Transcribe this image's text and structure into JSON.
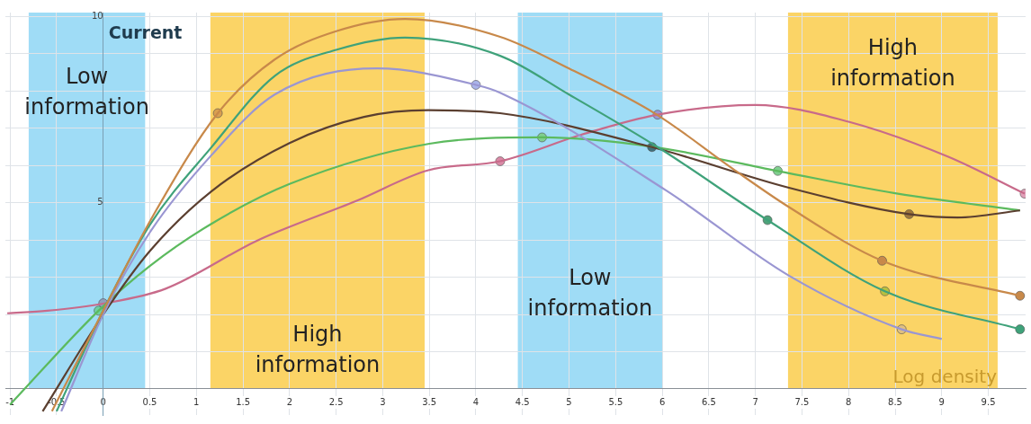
{
  "chart_data": {
    "type": "line",
    "xlim": [
      -1.05,
      9.9
    ],
    "ylim": [
      -0.7,
      10.1
    ],
    "xticks": [
      -1,
      -0.5,
      0,
      0.5,
      1,
      1.5,
      2,
      2.5,
      3,
      3.5,
      4,
      4.5,
      5,
      5.5,
      6,
      6.5,
      7,
      7.5,
      8,
      8.5,
      9,
      9.5
    ],
    "yticks": [
      {
        "value": 1,
        "label": null
      },
      {
        "value": 2,
        "label": null
      },
      {
        "value": 3,
        "label": null
      },
      {
        "value": 4,
        "label": null
      },
      5,
      {
        "value": 6,
        "label": null
      },
      {
        "value": 7,
        "label": null
      },
      {
        "value": 8,
        "label": null
      },
      {
        "value": 9,
        "label": null
      },
      10
    ],
    "grid": true,
    "legend": false,
    "marker": "none",
    "line_style": "solid",
    "bands": [
      {
        "axis": "x",
        "from": -0.8,
        "to": 0.45,
        "label": "Low information",
        "color": "#9fdcf6"
      },
      {
        "axis": "x",
        "from": 1.15,
        "to": 3.45,
        "label": "High information",
        "color": "#fbd466"
      },
      {
        "axis": "x",
        "from": 4.45,
        "to": 6.0,
        "label": "Low information",
        "color": "#9fdcf6"
      },
      {
        "axis": "x",
        "from": 7.35,
        "to": 9.6,
        "label": "High information",
        "color": "#fbd466"
      }
    ],
    "annotations": [
      "Current",
      "Log density"
    ],
    "series": [
      {
        "color": "#c8894a",
        "x": [
          -0.55,
          0,
          0.54,
          1.23,
          1.84,
          2.5,
          3.24,
          4.26,
          5.0,
          5.93,
          6.75,
          7.36,
          8.36,
          9.84
        ],
        "values": [
          -0.6,
          2.1,
          4.67,
          7.4,
          8.84,
          9.6,
          9.93,
          9.45,
          8.6,
          7.38,
          5.92,
          4.88,
          3.44,
          2.5
        ]
      },
      {
        "color": "#3fa27a",
        "x": [
          -0.5,
          0,
          0.5,
          1.16,
          1.84,
          2.5,
          3.24,
          4.26,
          5.0,
          5.97,
          7.13,
          8.39,
          9.84
        ],
        "values": [
          -0.6,
          2.1,
          4.4,
          6.48,
          8.4,
          9.1,
          9.43,
          8.94,
          7.9,
          6.46,
          4.53,
          2.62,
          1.6
        ]
      },
      {
        "color": "#9a96d2",
        "x": [
          -0.45,
          0,
          0.5,
          1.16,
          1.84,
          2.94,
          4.0,
          4.26,
          6.04,
          7.36,
          8.57,
          9.0
        ],
        "values": [
          -0.6,
          2.0,
          4.2,
          6.27,
          7.9,
          8.6,
          8.16,
          7.95,
          5.33,
          3.04,
          1.6,
          1.34
        ]
      },
      {
        "color": "#5b3f30",
        "x": [
          -0.65,
          0,
          0.5,
          1.16,
          2.0,
          2.8,
          3.49,
          4.26,
          5.89,
          7.36,
          8.65,
          9.17,
          9.84
        ],
        "values": [
          -0.6,
          2.0,
          3.7,
          5.3,
          6.6,
          7.3,
          7.48,
          7.4,
          6.49,
          5.4,
          4.69,
          4.6,
          4.79
        ]
      },
      {
        "color": "#5cba5e",
        "x": [
          -1.0,
          -0.05,
          0.5,
          1.16,
          2.0,
          3.5,
          4.71,
          5.89,
          7.24,
          8.5,
          9.84
        ],
        "values": [
          -0.42,
          2.1,
          3.3,
          4.43,
          5.5,
          6.58,
          6.75,
          6.5,
          5.85,
          5.25,
          4.79
        ]
      },
      {
        "color": "#c86a8a",
        "x": [
          -1.03,
          -0.6,
          0,
          0.67,
          1.66,
          2.72,
          3.49,
          4.26,
          5.13,
          5.95,
          7.0,
          8.0,
          9.07,
          9.89
        ],
        "values": [
          2.03,
          2.1,
          2.29,
          2.69,
          3.99,
          5.05,
          5.87,
          6.11,
          6.82,
          7.36,
          7.62,
          7.17,
          6.23,
          5.24
        ]
      },
      {
        "type": "scatter",
        "marker": "circle",
        "x": [
          1.23,
          4.0,
          4.26,
          5.95,
          4.71,
          5.89,
          7.24,
          7.13,
          8.36,
          8.65,
          8.39,
          8.57,
          9.89,
          9.84,
          9.84,
          -0.05,
          0
        ],
        "values": [
          7.4,
          8.16,
          6.11,
          7.36,
          6.75,
          6.49,
          5.85,
          4.53,
          3.44,
          4.69,
          2.62,
          1.6,
          5.24,
          2.5,
          1.6,
          2.1,
          2.3
        ],
        "colors": [
          "#d9a050",
          "#aab4ea",
          "#d98aa6",
          "#9a96d2",
          "#7fcf8f",
          "#3f6f7a",
          "#7fcf8f",
          "#4fa27a",
          "#c8894a",
          "#a0783a",
          "#b8c040",
          "#e0c080",
          "#e0a0b8",
          "#c8894a",
          "#3fa27a",
          "#6fd0a0",
          "#8f9fbf"
        ]
      }
    ]
  }
}
